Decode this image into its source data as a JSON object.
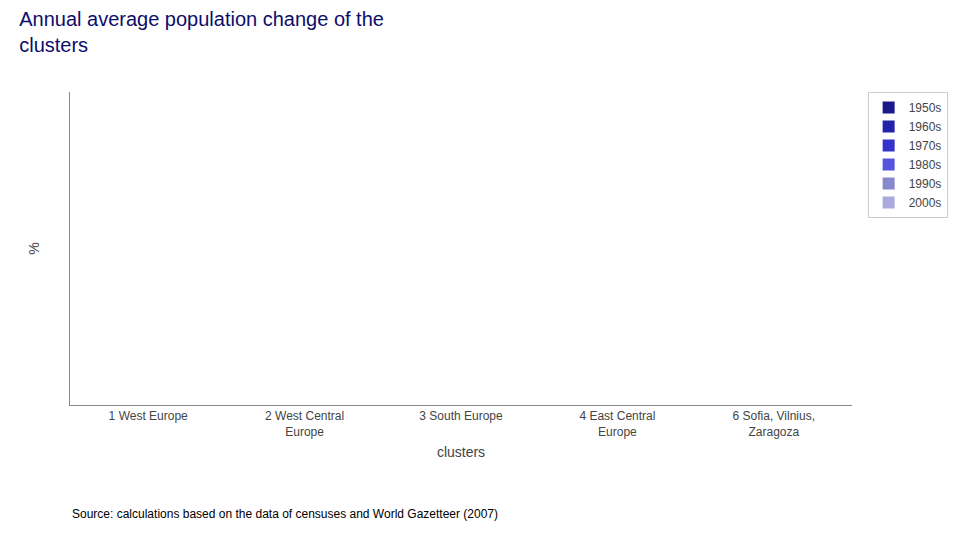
{
  "chart_data": {
    "type": "bar",
    "title": "Annual average population change of the\nclusters",
    "x_label": "clusters",
    "y_label": "%",
    "categories": [
      "1 West Europe",
      "2 West Central\nEurope",
      "3 South Europe",
      "4 East Central\nEurope",
      "6 Sofia, Vilnius,\nZaragoza"
    ],
    "series": [
      {
        "name": "1950s",
        "color": "#1a1a8c",
        "values": [
          0,
          0,
          0,
          0,
          0
        ]
      },
      {
        "name": "1960s",
        "color": "#2222aa",
        "values": [
          0,
          0,
          0,
          0,
          0
        ]
      },
      {
        "name": "1970s",
        "color": "#3333cc",
        "values": [
          0,
          0,
          0,
          0,
          0
        ]
      },
      {
        "name": "1980s",
        "color": "#5555dd",
        "values": [
          0,
          0,
          0,
          0,
          0
        ]
      },
      {
        "name": "1990s",
        "color": "#8888cc",
        "values": [
          0,
          0,
          0,
          0,
          0
        ]
      },
      {
        "name": "2000s",
        "color": "#aaaadd",
        "values": [
          0,
          0,
          0,
          0,
          0
        ]
      }
    ],
    "ylim": [
      -0.1,
      0.1
    ],
    "tick_labels": "x",
    "grid": false,
    "legend": "upper right",
    "annotations": [
      "Source: calculations based on the data of censuses and World Gazetteer (2007)"
    ]
  }
}
